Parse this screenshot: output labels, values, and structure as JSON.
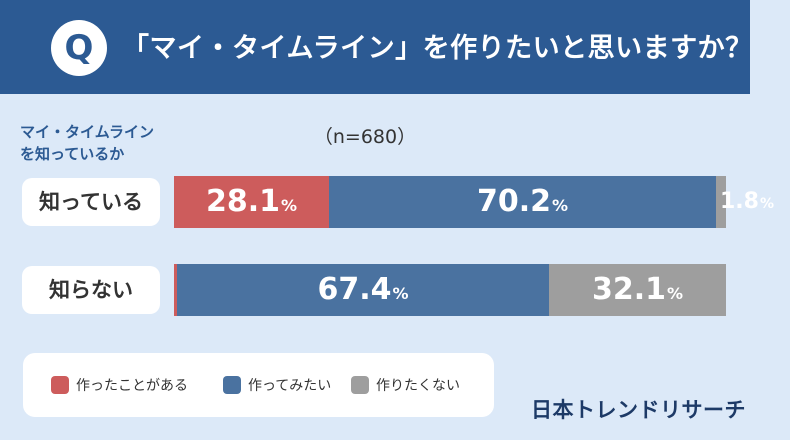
{
  "header": {
    "badge": "Q",
    "title": "「マイ・タイムライン」を作りたいと思いますか？"
  },
  "left_label": {
    "line1": "マイ・タイムライン",
    "line2": "を知っているか"
  },
  "sample_label": "（n=680）",
  "brand": "日本トレンドリサーチ",
  "colors": {
    "header_bg": "#2c5a93",
    "page_bg": "#dce9f8",
    "made": "#cd5c5c",
    "want": "#4a72a0",
    "not": "#9e9e9e"
  },
  "chart_data": {
    "type": "bar",
    "orientation": "horizontal",
    "stacked": true,
    "normalized": true,
    "title": "「マイ・タイムライン」を作りたいと思いますか？",
    "ylabel": "マイ・タイムラインを知っているか",
    "note": "（n=680）",
    "categories": [
      "知っている",
      "知らない"
    ],
    "unit": "%",
    "series": [
      {
        "name": "作ったことがある",
        "color": "#cd5c5c",
        "values": [
          28.1,
          0.5
        ]
      },
      {
        "name": "作ってみたい",
        "color": "#4a72a0",
        "values": [
          70.2,
          67.4
        ]
      },
      {
        "name": "作りたくない",
        "color": "#9e9e9e",
        "values": [
          1.8,
          32.1
        ]
      }
    ],
    "xlim": [
      0,
      100
    ],
    "legend_position": "bottom-left"
  }
}
